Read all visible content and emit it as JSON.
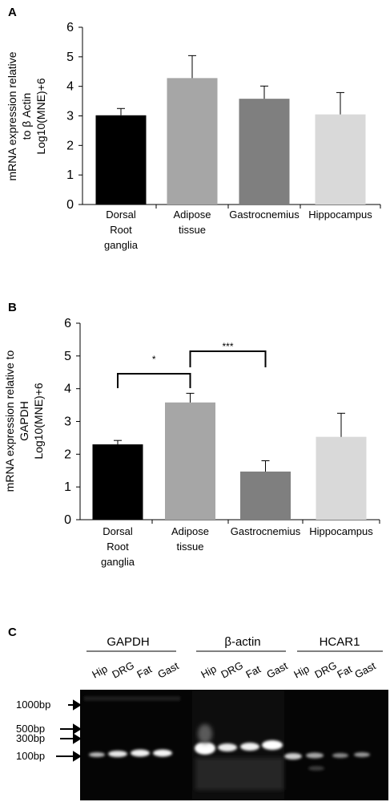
{
  "panels": {
    "A": {
      "label": "A"
    },
    "B": {
      "label": "B"
    },
    "C": {
      "label": "C"
    }
  },
  "chart_data": [
    {
      "id": "A",
      "type": "bar",
      "ylabel": [
        "mRNA expression relative",
        "to β Actin",
        "Log10(MNE)+6"
      ],
      "ylim": [
        0,
        6
      ],
      "yticks": [
        "0",
        "1",
        "2",
        "3",
        "4",
        "5",
        "6"
      ],
      "categories": [
        {
          "lines": [
            "Dorsal",
            "Root",
            "ganglia"
          ],
          "value": 3.02,
          "error": 0.23,
          "color": "#000000"
        },
        {
          "lines": [
            "Adipose",
            "tissue"
          ],
          "value": 4.28,
          "error": 0.76,
          "color": "#a6a6a6"
        },
        {
          "lines": [
            "Gastrocnemius"
          ],
          "value": 3.58,
          "error": 0.43,
          "color": "#7f7f7f"
        },
        {
          "lines": [
            "Hippocampus"
          ],
          "value": 3.05,
          "error": 0.74,
          "color": "#d9d9d9"
        }
      ]
    },
    {
      "id": "B",
      "type": "bar",
      "ylabel": [
        "mRNA expression relative to",
        "GAPDH",
        "Log10(MNE)+6"
      ],
      "ylim": [
        0,
        6
      ],
      "yticks": [
        "0",
        "1",
        "2",
        "3",
        "4",
        "5",
        "6"
      ],
      "categories": [
        {
          "lines": [
            "Dorsal",
            "Root",
            "ganglia"
          ],
          "value": 2.3,
          "error": 0.12,
          "color": "#000000"
        },
        {
          "lines": [
            "Adipose",
            "tissue"
          ],
          "value": 3.58,
          "error": 0.28,
          "color": "#a6a6a6"
        },
        {
          "lines": [
            "Gastrocnemius"
          ],
          "value": 1.47,
          "error": 0.33,
          "color": "#7f7f7f"
        },
        {
          "lines": [
            "Hippocampus"
          ],
          "value": 2.53,
          "error": 0.72,
          "color": "#d9d9d9"
        }
      ],
      "significance": [
        {
          "from": 0,
          "to": 1,
          "label": "*"
        },
        {
          "from": 1,
          "to": 2,
          "label": "***"
        }
      ]
    }
  ],
  "gel": {
    "groups": [
      {
        "name": "GAPDH",
        "lanes": [
          "Hip",
          "DRG",
          "Fat",
          "Gast"
        ]
      },
      {
        "name": "β-actin",
        "lanes": [
          "Hip",
          "DRG",
          "Fat",
          "Gast"
        ]
      },
      {
        "name": "HCAR1",
        "lanes": [
          "Hip",
          "DRG",
          "Fat",
          "Gast"
        ]
      }
    ],
    "markers": [
      "1000bp",
      "500bp",
      "300bp",
      "100bp"
    ]
  }
}
